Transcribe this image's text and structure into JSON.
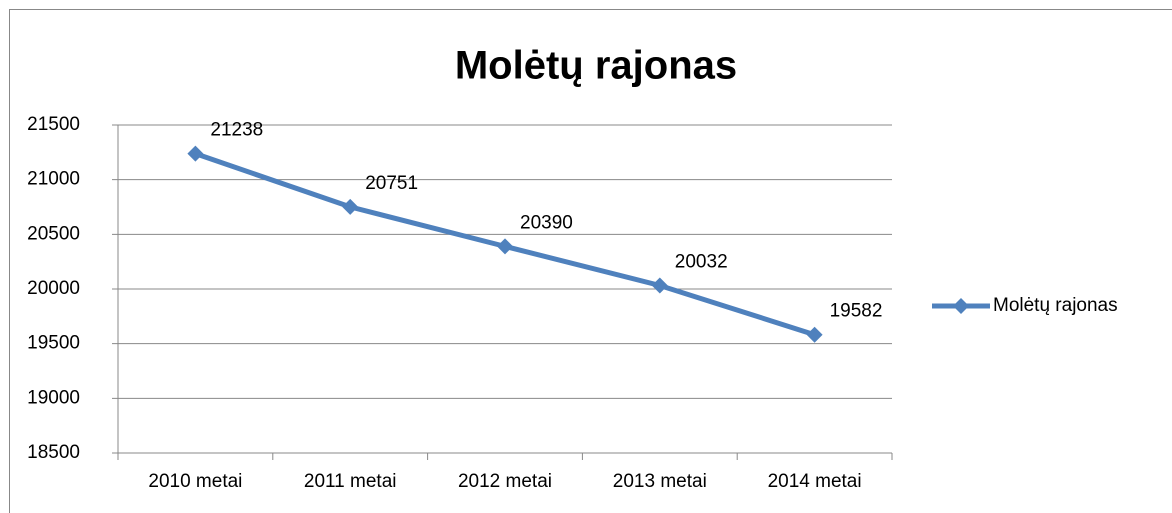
{
  "chart_data": {
    "type": "line",
    "title": "Molėtų rajonas",
    "categories": [
      "2010 metai",
      "2011 metai",
      "2012 metai",
      "2013 metai",
      "2014 metai"
    ],
    "series": [
      {
        "name": "Molėtų rajonas",
        "color": "#4f81bd",
        "values": [
          21238,
          20751,
          20390,
          20032,
          19582
        ]
      }
    ],
    "ylim": [
      18500,
      21500
    ],
    "yticks": [
      18500,
      19000,
      19500,
      20000,
      20500,
      21000,
      21500
    ],
    "grid": true,
    "legend": "right"
  }
}
